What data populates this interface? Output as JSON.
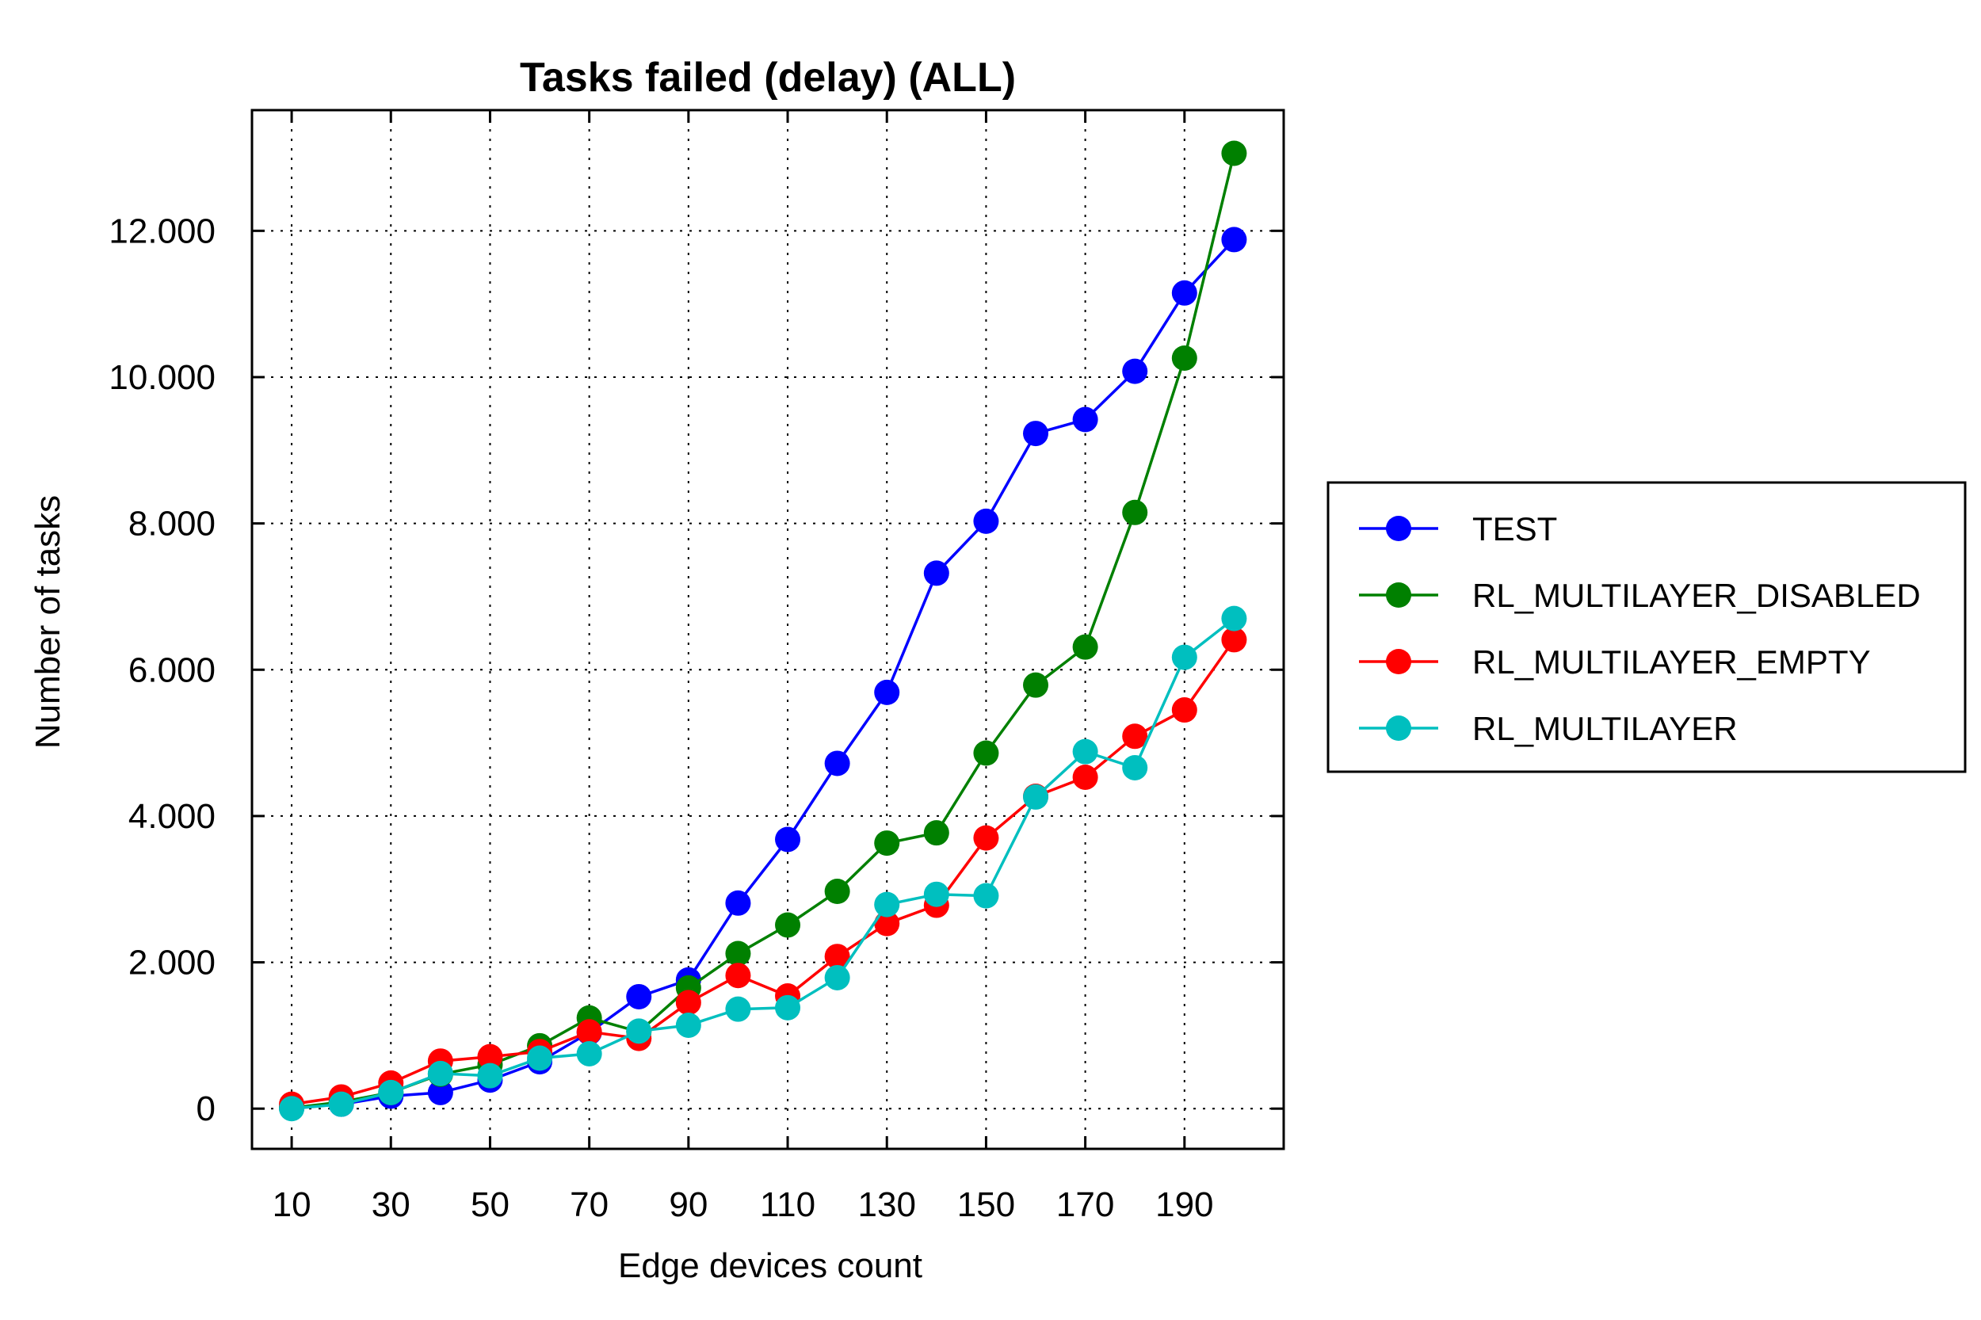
{
  "chart_data": {
    "type": "line",
    "title": "Tasks failed (delay) (ALL)",
    "xlabel": "Edge devices count",
    "ylabel": "Number of tasks",
    "x": [
      10,
      20,
      30,
      40,
      50,
      60,
      70,
      80,
      90,
      100,
      110,
      120,
      130,
      140,
      150,
      160,
      170,
      180,
      190,
      200
    ],
    "xticks": [
      10,
      30,
      50,
      70,
      90,
      110,
      130,
      150,
      170,
      190
    ],
    "xtick_labels": [
      "10",
      "30",
      "50",
      "70",
      "90",
      "110",
      "130",
      "150",
      "170",
      "190"
    ],
    "yticks": [
      0,
      2000,
      4000,
      6000,
      8000,
      10000,
      12000
    ],
    "ytick_labels": [
      "0",
      "2.000",
      "4.000",
      "6.000",
      "8.000",
      "10.000",
      "12.000"
    ],
    "xlim": [
      2,
      210
    ],
    "ylim": [
      -550,
      13650
    ],
    "grid": true,
    "legend_position": "right",
    "series": [
      {
        "name": "TEST",
        "color": "#0000ff",
        "values": [
          10,
          60,
          170,
          220,
          390,
          640,
          1040,
          1530,
          1760,
          2810,
          3680,
          4720,
          5690,
          7320,
          8030,
          9230,
          9420,
          10080,
          11150,
          11880
        ]
      },
      {
        "name": "RL_MULTILAYER_DISABLED",
        "color": "#008000",
        "values": [
          10,
          90,
          220,
          470,
          600,
          860,
          1240,
          1050,
          1650,
          2120,
          2510,
          2970,
          3630,
          3770,
          4860,
          5790,
          6310,
          8150,
          10260,
          13060
        ]
      },
      {
        "name": "RL_MULTILAYER_EMPTY",
        "color": "#ff0000",
        "values": [
          60,
          160,
          350,
          650,
          710,
          780,
          1050,
          960,
          1450,
          1820,
          1540,
          2080,
          2530,
          2780,
          3700,
          4270,
          4530,
          5090,
          5450,
          6410
        ]
      },
      {
        "name": "RL_MULTILAYER",
        "color": "#00bfbf",
        "values": [
          0,
          60,
          220,
          480,
          450,
          690,
          750,
          1060,
          1140,
          1360,
          1380,
          1790,
          2790,
          2930,
          2910,
          4260,
          4880,
          4660,
          6170,
          6700
        ]
      }
    ]
  }
}
